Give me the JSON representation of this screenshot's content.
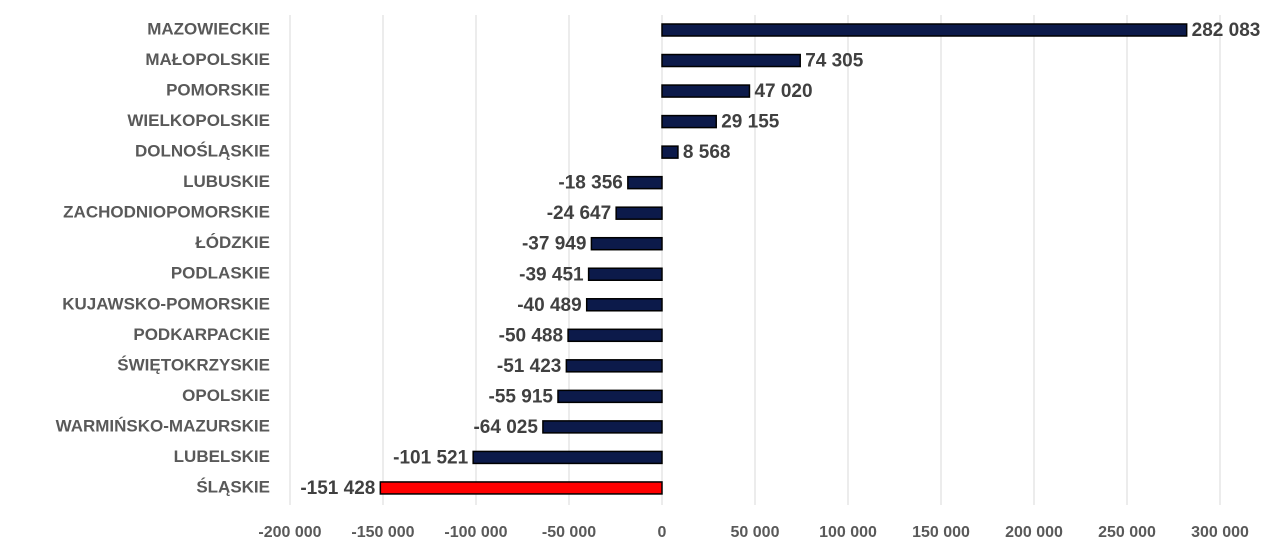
{
  "chart_data": {
    "type": "hbar",
    "categories": [
      "MAZOWIECKIE",
      "MAŁOPOLSKIE",
      "POMORSKIE",
      "WIELKOPOLSKIE",
      "DOLNOŚLĄSKIE",
      "LUBUSKIE",
      "ZACHODNIOPOMORSKIE",
      "ŁÓDZKIE",
      "PODLASKIE",
      "KUJAWSKO-POMORSKIE",
      "PODKARPACKIE",
      "ŚWIĘTOKRZYSKIE",
      "OPOLSKIE",
      "WARMIŃSKO-MAZURSKIE",
      "LUBELSKIE",
      "ŚLĄSKIE"
    ],
    "values": [
      282083,
      74305,
      47020,
      29155,
      8568,
      -18356,
      -24647,
      -37949,
      -39451,
      -40489,
      -50488,
      -51423,
      -55915,
      -64025,
      -101521,
      -151428
    ],
    "value_labels": [
      "282 083",
      "74 305",
      "47 020",
      "29 155",
      "8 568",
      "-18 356",
      "-24 647",
      "-37 949",
      "-39 451",
      "-40 489",
      "-50 488",
      "-51 423",
      "-55 915",
      "-64 025",
      "-101 521",
      "-151 428"
    ],
    "colors": [
      "#0c1a4a",
      "#0c1a4a",
      "#0c1a4a",
      "#0c1a4a",
      "#0c1a4a",
      "#0c1a4a",
      "#0c1a4a",
      "#0c1a4a",
      "#0c1a4a",
      "#0c1a4a",
      "#0c1a4a",
      "#0c1a4a",
      "#0c1a4a",
      "#0c1a4a",
      "#0c1a4a",
      "#ff0000"
    ],
    "xlim": [
      -200000,
      300000
    ],
    "xticks": [
      {
        "value": -200000,
        "label": "-200 000"
      },
      {
        "value": -150000,
        "label": "-150 000"
      },
      {
        "value": -100000,
        "label": "-100 000"
      },
      {
        "value": -50000,
        "label": "-50 000"
      },
      0,
      {
        "value": 50000,
        "label": "50 000"
      },
      {
        "value": 100000,
        "label": "100 000"
      },
      {
        "value": 150000,
        "label": "150 000"
      },
      {
        "value": 200000,
        "label": "200 000"
      },
      {
        "value": 250000,
        "label": "250 000"
      },
      {
        "value": 300000,
        "label": "300 000"
      }
    ],
    "grid": true
  }
}
